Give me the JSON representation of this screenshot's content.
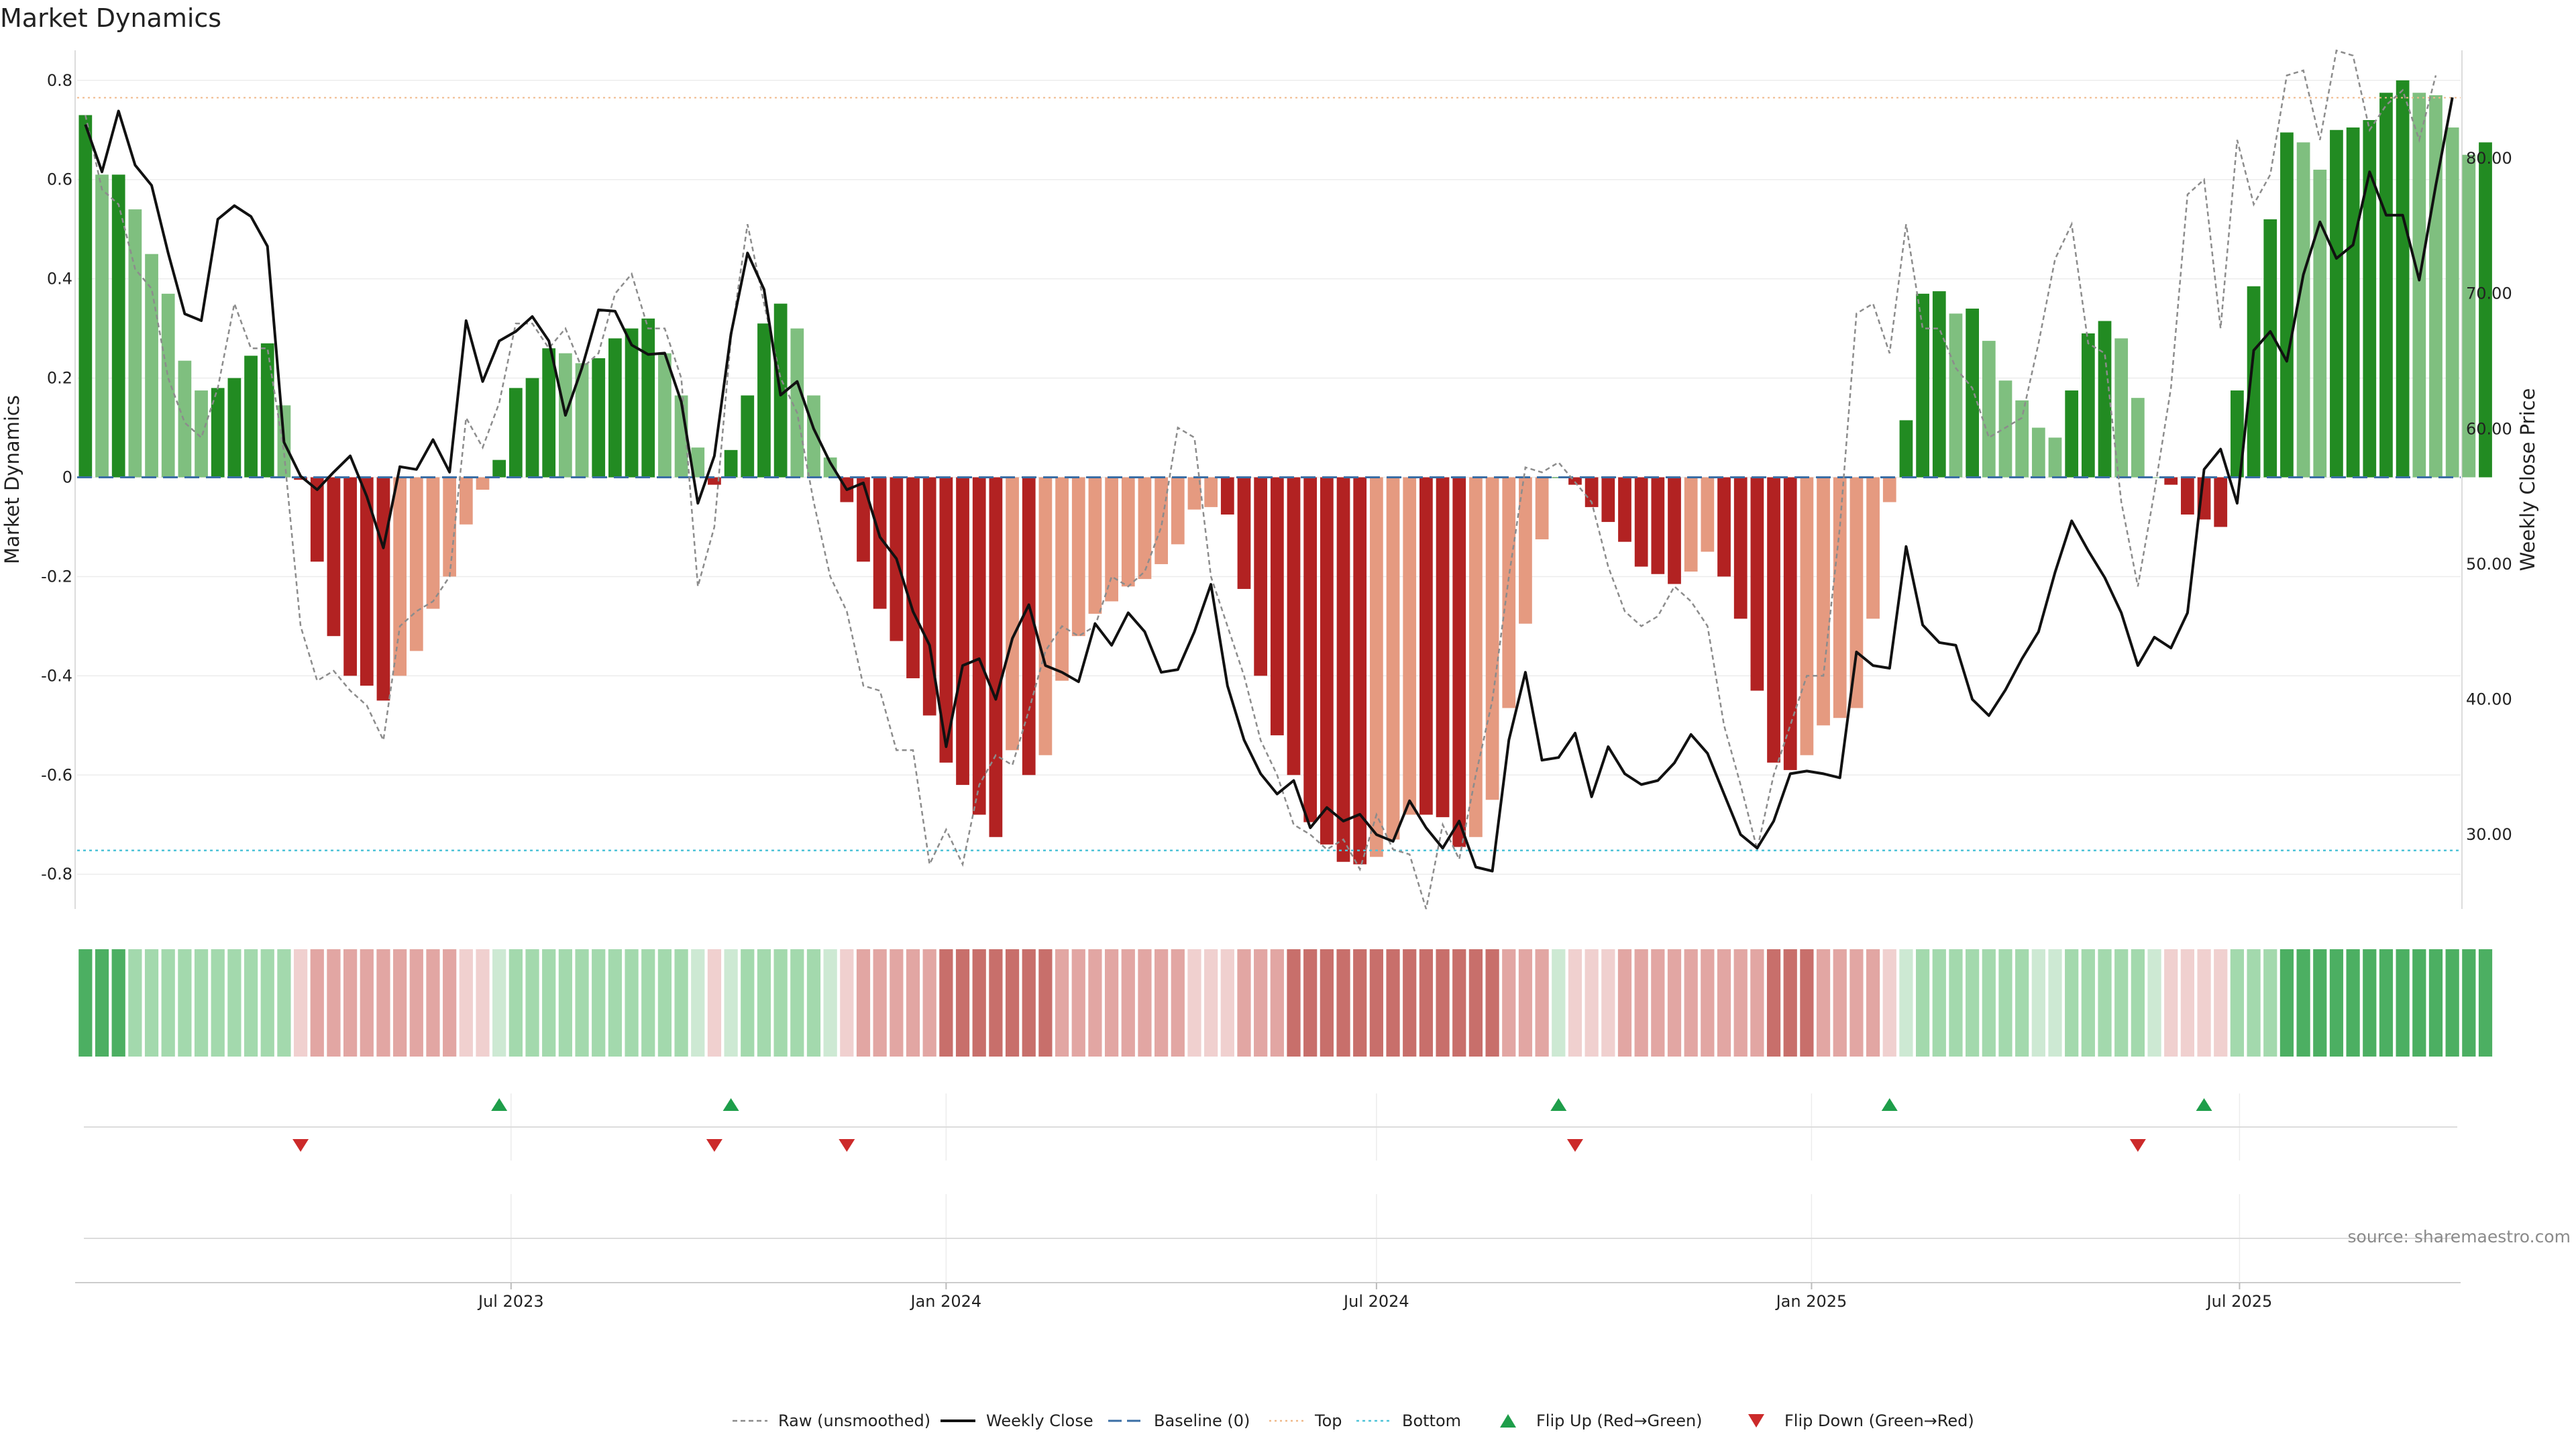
{
  "title": "Market Dynamics",
  "source": "source: sharemaestro.com",
  "chart_data": {
    "type": "bar",
    "title": "Market Dynamics",
    "ylabel": "Market Dynamics",
    "y2label": "Weekly Close Price",
    "ylim": [
      -0.87,
      0.82
    ],
    "y2lim": [
      24.5,
      86.5
    ],
    "yticks": [
      {
        "value": 0.8,
        "label": "0.8"
      },
      {
        "value": 0.6,
        "label": "0.6"
      },
      {
        "value": 0.4,
        "label": "0.4"
      },
      {
        "value": 0.2,
        "label": "0.2"
      },
      {
        "value": 0,
        "label": "0"
      },
      {
        "value": -0.2,
        "label": "-0.2"
      },
      {
        "value": -0.4,
        "label": "-0.4"
      },
      {
        "value": -0.6,
        "label": "-0.6"
      },
      {
        "value": -0.8,
        "label": "-0.8"
      }
    ],
    "y2ticks": [
      {
        "value": 80,
        "label": "80.00"
      },
      {
        "value": 70,
        "label": "70.00"
      },
      {
        "value": 60,
        "label": "60.00"
      },
      {
        "value": 50,
        "label": "50.00"
      },
      {
        "value": 40,
        "label": "40.00"
      },
      {
        "value": 30,
        "label": "30.00"
      }
    ],
    "start_date": "2023-01-02",
    "week_count": 144,
    "xticks": [
      {
        "date": "2023-07-01",
        "label": "Jul 2023"
      },
      {
        "date": "2024-01-01",
        "label": "Jan 2024"
      },
      {
        "date": "2024-07-01",
        "label": "Jul 2024"
      },
      {
        "date": "2025-01-01",
        "label": "Jan 2025"
      },
      {
        "date": "2025-07-01",
        "label": "Jul 2025"
      }
    ],
    "top": 0.765,
    "bottom": -0.752,
    "baseline": 0,
    "bar_colors": {
      "strong_up": "#228b22",
      "weak_up": "#7fbf7f",
      "strong_down": "#b22222",
      "weak_down": "#e59a80"
    },
    "smoothed": [
      0.73,
      0.61,
      0.61,
      0.54,
      0.45,
      0.37,
      0.235,
      0.175,
      0.18,
      0.2,
      0.245,
      0.27,
      0.145,
      -0.005,
      -0.17,
      -0.32,
      -0.4,
      -0.42,
      -0.45,
      -0.4,
      -0.35,
      -0.265,
      -0.2,
      -0.095,
      -0.025,
      0.035,
      0.18,
      0.2,
      0.26,
      0.25,
      0.23,
      0.24,
      0.28,
      0.3,
      0.32,
      0.25,
      0.165,
      0.06,
      -0.015,
      0.055,
      0.165,
      0.31,
      0.35,
      0.3,
      0.165,
      0.04,
      -0.05,
      -0.17,
      -0.265,
      -0.33,
      -0.405,
      -0.48,
      -0.575,
      -0.62,
      -0.68,
      -0.725,
      -0.55,
      -0.6,
      -0.56,
      -0.41,
      -0.32,
      -0.275,
      -0.25,
      -0.22,
      -0.205,
      -0.175,
      -0.135,
      -0.065,
      -0.06,
      -0.075,
      -0.225,
      -0.4,
      -0.52,
      -0.6,
      -0.695,
      -0.74,
      -0.775,
      -0.78,
      -0.765,
      -0.73,
      -0.68,
      -0.68,
      -0.685,
      -0.745,
      -0.725,
      -0.65,
      -0.465,
      -0.295,
      -0.125,
      0,
      -0.015,
      -0.06,
      -0.09,
      -0.13,
      -0.18,
      -0.195,
      -0.215,
      -0.19,
      -0.15,
      -0.2,
      -0.285,
      -0.43,
      -0.575,
      -0.59,
      -0.56,
      -0.5,
      -0.485,
      -0.465,
      -0.285,
      -0.05,
      0.115,
      0.37,
      0.375,
      0.33,
      0.34,
      0.275,
      0.195,
      0.155,
      0.1,
      0.08,
      0.175,
      0.29,
      0.315,
      0.28,
      0.16,
      0,
      -0.015,
      -0.075,
      -0.085,
      -0.1,
      0.175,
      0.385,
      0.52,
      0.695,
      0.675,
      0.62,
      0.7,
      0.705,
      0.72,
      0.775,
      0.8,
      0.775,
      0.77,
      0.705,
      0.65,
      0.675
    ],
    "raw": [
      0.73,
      0.58,
      0.55,
      0.42,
      0.38,
      0.2,
      0.11,
      0.08,
      0.18,
      0.35,
      0.26,
      0.26,
      0.05,
      -0.3,
      -0.41,
      -0.39,
      -0.43,
      -0.46,
      -0.53,
      -0.3,
      -0.27,
      -0.25,
      -0.2,
      0.12,
      0.06,
      0.15,
      0.31,
      0.31,
      0.26,
      0.3,
      0.22,
      0.25,
      0.37,
      0.41,
      0.3,
      0.3,
      0.2,
      -0.22,
      -0.1,
      0.28,
      0.51,
      0.35,
      0.2,
      0.13,
      -0.05,
      -0.2,
      -0.27,
      -0.42,
      -0.43,
      -0.55,
      -0.55,
      -0.78,
      -0.71,
      -0.78,
      -0.62,
      -0.56,
      -0.58,
      -0.47,
      -0.35,
      -0.3,
      -0.32,
      -0.3,
      -0.2,
      -0.22,
      -0.19,
      -0.1,
      0.1,
      0.08,
      -0.2,
      -0.3,
      -0.4,
      -0.53,
      -0.6,
      -0.7,
      -0.72,
      -0.75,
      -0.73,
      -0.79,
      -0.68,
      -0.75,
      -0.76,
      -0.87,
      -0.7,
      -0.77,
      -0.6,
      -0.45,
      -0.2,
      0.02,
      0.01,
      0.03,
      -0.01,
      -0.05,
      -0.18,
      -0.27,
      -0.3,
      -0.28,
      -0.22,
      -0.25,
      -0.3,
      -0.5,
      -0.62,
      -0.75,
      -0.6,
      -0.5,
      -0.4,
      -0.4,
      -0.1,
      0.33,
      0.35,
      0.25,
      0.51,
      0.3,
      0.3,
      0.22,
      0.18,
      0.08,
      0.1,
      0.12,
      0.27,
      0.44,
      0.51,
      0.27,
      0.25,
      -0.05,
      -0.22,
      -0.03,
      0.18,
      0.57,
      0.6,
      0.3,
      0.68,
      0.55,
      0.61,
      0.81,
      0.82,
      0.68,
      0.86,
      0.85,
      0.7,
      0.75,
      0.78,
      0.68,
      0.81
    ],
    "close": [
      82.5,
      79,
      83.5,
      79.5,
      78,
      73,
      68.5,
      68,
      75.5,
      76.5,
      75.7,
      73.5,
      59,
      56.5,
      55.5,
      56.8,
      58,
      55,
      51.2,
      57.2,
      57,
      59.2,
      56.8,
      68,
      63.5,
      66.5,
      67.2,
      68.3,
      66.5,
      61,
      64.5,
      68.8,
      68.7,
      66.2,
      65.5,
      65.6,
      62,
      54.5,
      58,
      67,
      73,
      70.3,
      62.5,
      63.5,
      60,
      57.5,
      55.5,
      56,
      52,
      50.4,
      46.5,
      44,
      36.5,
      42.5,
      43,
      40,
      44.5,
      47,
      42.5,
      42,
      41.3,
      45.6,
      44,
      46.4,
      45,
      42,
      42.2,
      45,
      48.5,
      41,
      37,
      34.5,
      33,
      34,
      30.5,
      32,
      31,
      31.5,
      30,
      29.5,
      32.5,
      30.5,
      29,
      31,
      27.6,
      27.3,
      37,
      42,
      35.5,
      35.7,
      37.5,
      32.8,
      36.5,
      34.5,
      33.7,
      34,
      35.3,
      37.4,
      36,
      33,
      30,
      29,
      31,
      34.5,
      34.7,
      34.5,
      34.2,
      43.5,
      42.5,
      42.3,
      51.3,
      45.5,
      44.2,
      44,
      40,
      38.8,
      40.7,
      43,
      45,
      49.4,
      53.2,
      51,
      49,
      46.4,
      42.5,
      44.6,
      43.8,
      46.4,
      57,
      58.5,
      54.5,
      65.8,
      67.2,
      65,
      71.4,
      75.3,
      72.6,
      73.6,
      79,
      75.8,
      75.8,
      71,
      78,
      84.5
    ],
    "flip_up": [
      25,
      39,
      89,
      109,
      128
    ],
    "flip_down": [
      13,
      38,
      46,
      90,
      124
    ],
    "status_colors": {
      "strong_up": "#4caf62",
      "weak_up": "#a3d9ad",
      "faint_up": "#cde9d3",
      "strong_down": "#c86f6b",
      "weak_down": "#e2a6a3",
      "faint_down": "#f0d0cf"
    },
    "legend": [
      {
        "key": "raw",
        "label": "Raw (unsmoothed)"
      },
      {
        "key": "close",
        "label": "Weekly Close"
      },
      {
        "key": "baseline",
        "label": "Baseline (0)"
      },
      {
        "key": "top",
        "label": "Top"
      },
      {
        "key": "bottom",
        "label": "Bottom"
      },
      {
        "key": "flip-up",
        "label": "Flip Up (Red→Green)"
      },
      {
        "key": "flip-down",
        "label": "Flip Down (Green→Red)"
      }
    ],
    "legend_position": "bottom",
    "grid": true
  }
}
